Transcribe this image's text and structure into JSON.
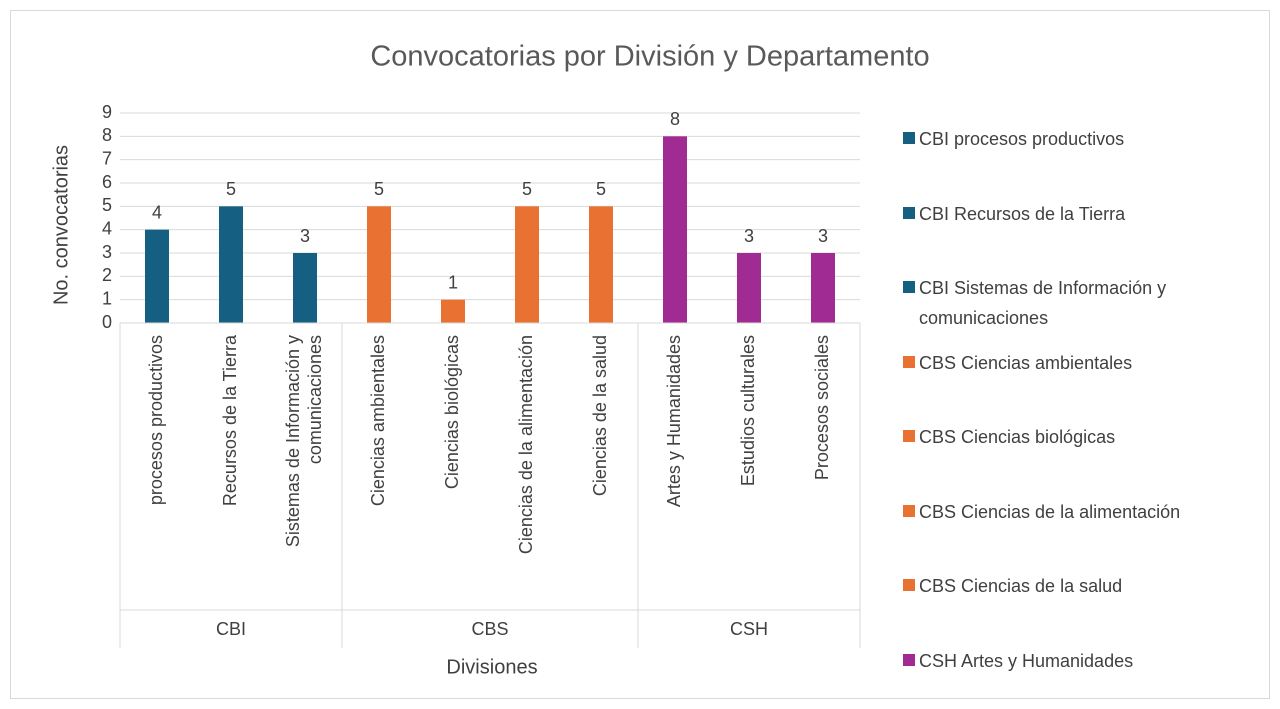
{
  "chart_data": {
    "type": "bar",
    "title": "Convocatorias por División y Departamento",
    "y_label": "No. convocatorias",
    "x_label": "Divisiones",
    "groups": [
      {
        "name": "CBI",
        "color": "#156082",
        "categories": [
          "procesos productivos",
          "Recursos de la Tierra",
          "Sistemas de Información y comunicaciones"
        ],
        "values": [
          4,
          5,
          3
        ]
      },
      {
        "name": "CBS",
        "color": "#e97132",
        "categories": [
          "Ciencias ambientales",
          "Ciencias biológicas",
          "Ciencias de la alimentación",
          "Ciencias de la salud"
        ],
        "values": [
          5,
          1,
          5,
          5
        ]
      },
      {
        "name": "CSH",
        "color": "#a02b93",
        "categories": [
          "Artes y Humanidades",
          "Estudios culturales",
          "Procesos sociales"
        ],
        "values": [
          8,
          3,
          3
        ]
      }
    ],
    "legend": [
      {
        "name": "CBI procesos productivos",
        "color": "#156082"
      },
      {
        "name": "CBI Recursos de la Tierra",
        "color": "#156082"
      },
      {
        "name": "CBI Sistemas de Información  y comunicaciones",
        "color": "#156082"
      },
      {
        "name": "CBS Ciencias ambientales",
        "color": "#e97132"
      },
      {
        "name": "CBS Ciencias biológicas",
        "color": "#e97132"
      },
      {
        "name": "CBS Ciencias de la alimentación",
        "color": "#e97132"
      },
      {
        "name": "CBS Ciencias de la salud",
        "color": "#e97132"
      },
      {
        "name": "CSH Artes y Humanidades",
        "color": "#a02b93"
      }
    ],
    "ylim": [
      0,
      9
    ],
    "yticks": [
      0,
      1,
      2,
      3,
      4,
      5,
      6,
      7,
      8,
      9
    ],
    "grid": true
  }
}
